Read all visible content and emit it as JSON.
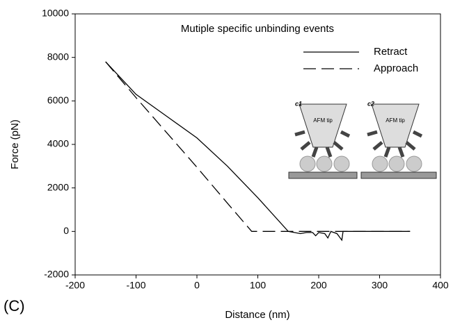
{
  "chart_data": {
    "type": "line",
    "annotation": "Mutiple specific unbinding events",
    "panel_label": "(C)",
    "x_label": "Distance (nm)",
    "y_label": "Force (pN)",
    "xlim": [
      -200,
      400
    ],
    "xticks": [
      -200,
      -100,
      0,
      100,
      200,
      300,
      400
    ],
    "ylim": [
      -2000,
      10000
    ],
    "yticks": [
      -2000,
      0,
      2000,
      4000,
      6000,
      8000,
      10000
    ],
    "legend": "upper right",
    "series": [
      {
        "name": "Retract",
        "color": "#000000",
        "dash": "solid",
        "x": [
          -150,
          -100,
          -50,
          0,
          50,
          100,
          150,
          160,
          170,
          180,
          190,
          195,
          200,
          210,
          215,
          220,
          230,
          238,
          240,
          250,
          300,
          350
        ],
        "values": [
          7800,
          6300,
          5300,
          4300,
          3000,
          1550,
          0,
          -50,
          -100,
          -50,
          -50,
          -200,
          -50,
          -100,
          -300,
          0,
          -100,
          -400,
          0,
          0,
          0,
          0
        ]
      },
      {
        "name": "Approach",
        "color": "#000000",
        "dash": "dashed",
        "x": [
          -150,
          -100,
          -50,
          0,
          50,
          90,
          150,
          250,
          350
        ],
        "values": [
          7800,
          6150,
          4550,
          2950,
          1300,
          0,
          0,
          0,
          0
        ]
      }
    ],
    "inset": [
      {
        "label": "c1",
        "tip": "AFM tip"
      },
      {
        "label": "c2",
        "tip": "AFM tip"
      }
    ]
  }
}
